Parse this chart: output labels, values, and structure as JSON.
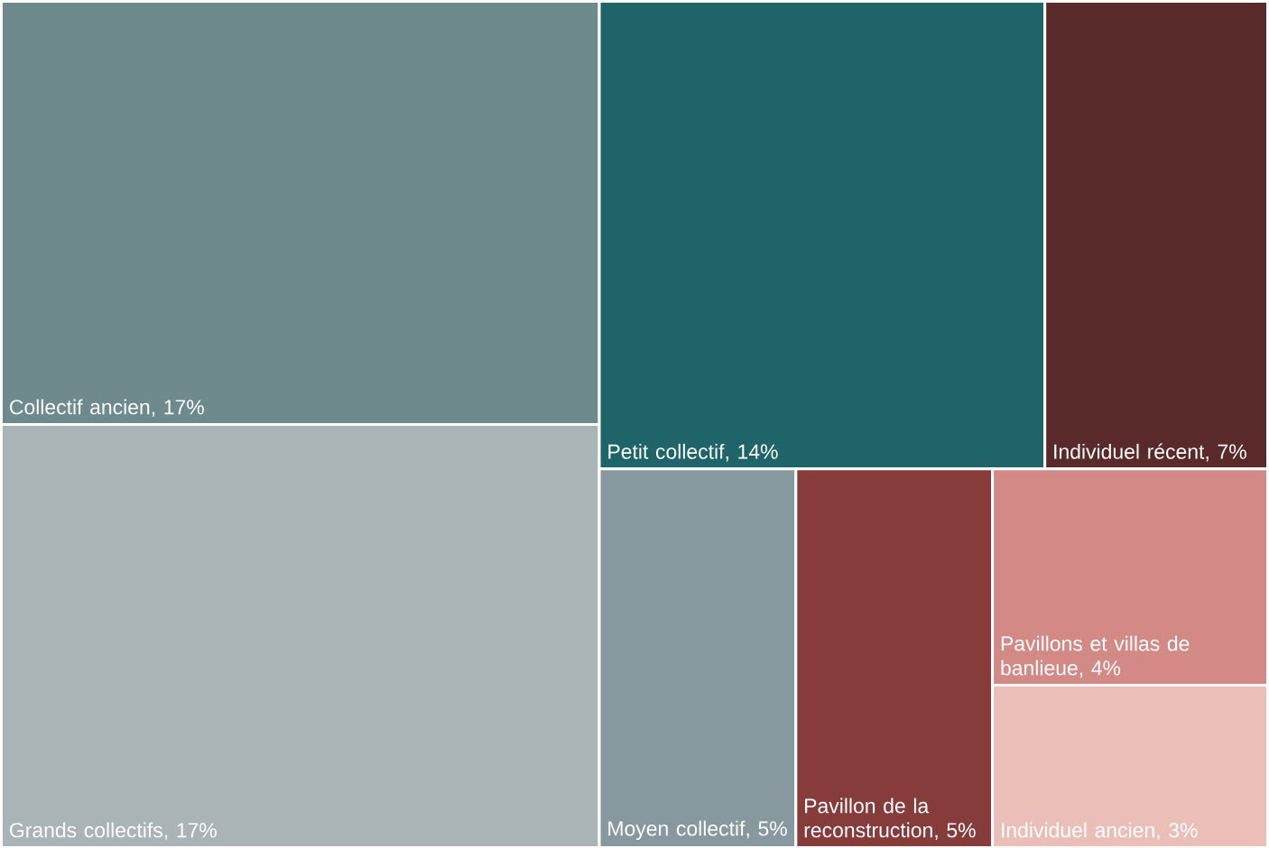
{
  "chart_data": {
    "type": "other",
    "categories": [
      "Collectif ancien",
      "Grands collectifs",
      "Petit collectif",
      "Individuel récent",
      "Moyen collectif",
      "Pavillon de la reconstruction",
      "Pavillons et villas de banlieue",
      "Individuel ancien"
    ],
    "value_labels": [
      ", 17%",
      ", 17%",
      ", 14%",
      ", 7%",
      ", 5%",
      ", 5%",
      ", 4%",
      ", 3%"
    ],
    "values": [
      17,
      17,
      14,
      7,
      5,
      5,
      4,
      3
    ],
    "colors": [
      "#6e8a8c",
      "#aab4b6",
      "#1e6468",
      "#5a2a2a",
      "#87999e",
      "#873c3c",
      "#d38a87",
      "#ebbfb8"
    ]
  }
}
